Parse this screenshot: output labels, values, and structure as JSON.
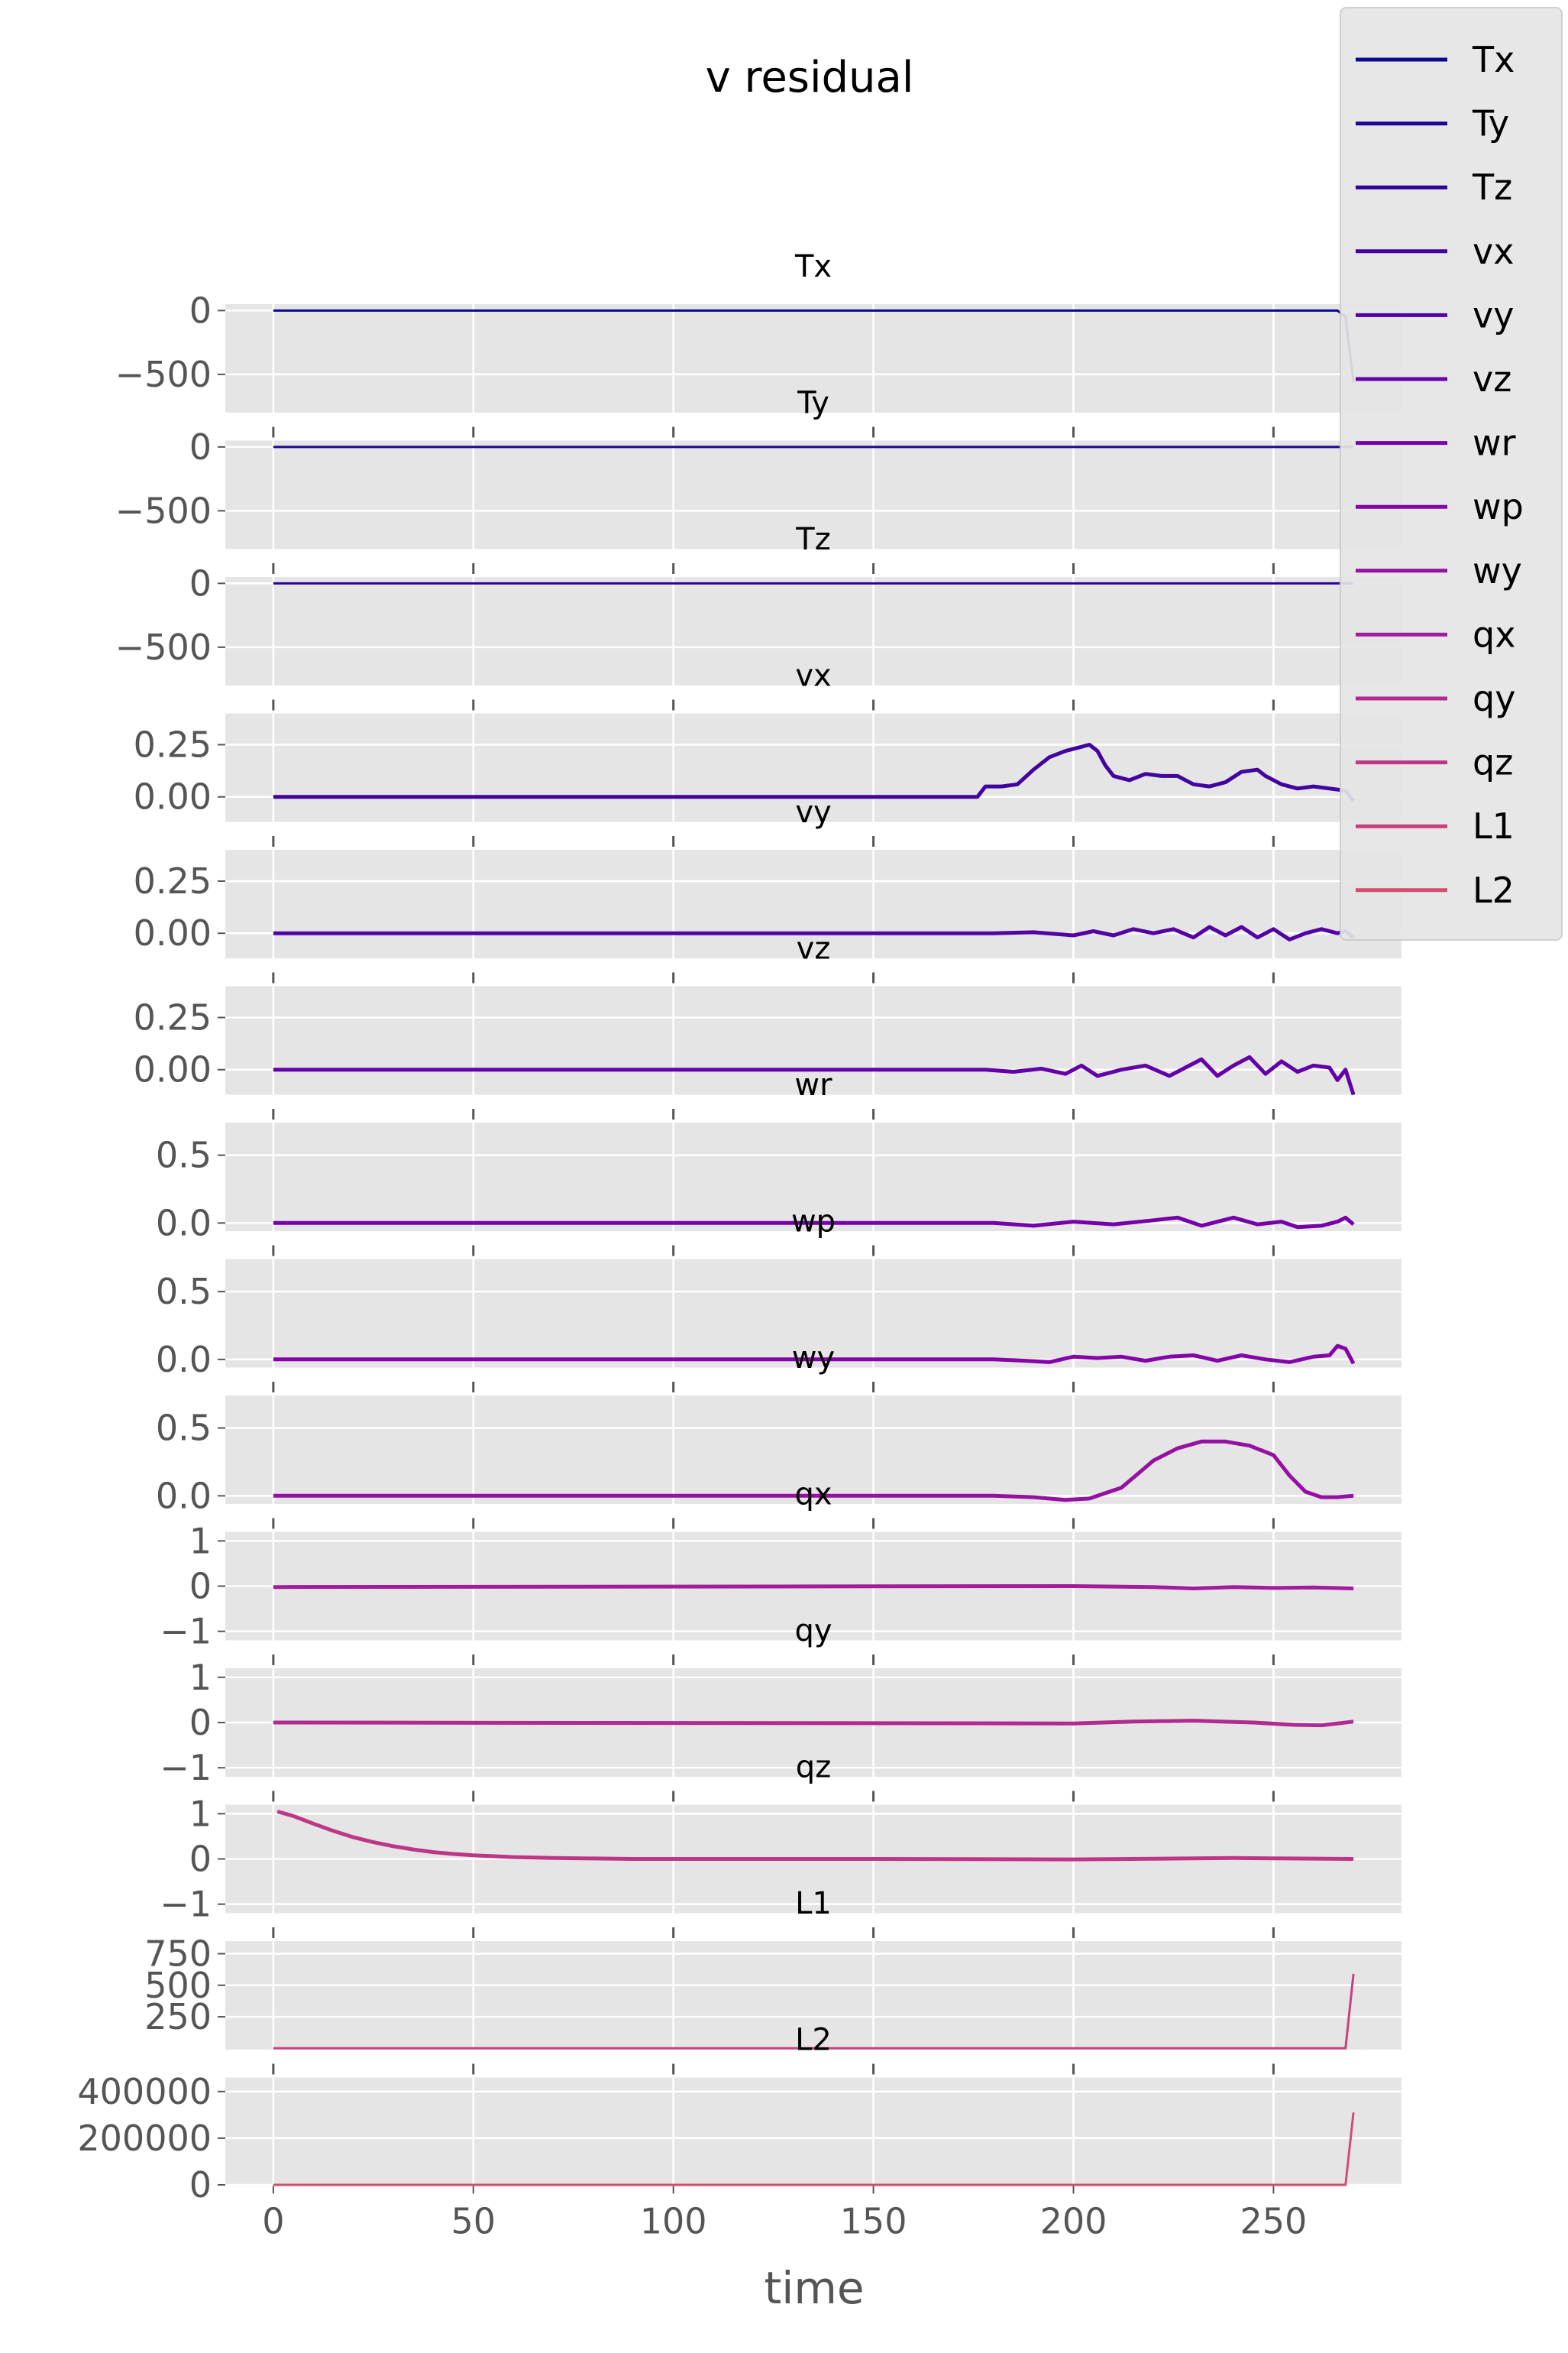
{
  "chart_data": {
    "type": "line",
    "title": "v residual",
    "xlabel": "time",
    "xlim": [
      -12,
      282
    ],
    "xticks": [
      0,
      50,
      100,
      150,
      200,
      250
    ],
    "x_range": [
      0,
      270
    ],
    "legend_position": "upper-right",
    "grid": true,
    "panels": [
      {
        "name": "Tx",
        "color": "#0d0887",
        "ylim": [
          -800,
          50
        ],
        "yticks": [
          0,
          -500
        ],
        "ytick_labels": [
          "0",
          "−500"
        ],
        "points": [
          [
            0,
            0
          ],
          [
            266,
            0
          ],
          [
            268,
            -50
          ],
          [
            270,
            -560
          ]
        ]
      },
      {
        "name": "Ty",
        "color": "#1b068d",
        "ylim": [
          -800,
          50
        ],
        "yticks": [
          0,
          -500
        ],
        "ytick_labels": [
          "0",
          "−500"
        ],
        "points": [
          [
            0,
            0
          ],
          [
            270,
            0
          ]
        ]
      },
      {
        "name": "Tz",
        "color": "#2a0593",
        "ylim": [
          -800,
          50
        ],
        "yticks": [
          0,
          -500
        ],
        "ytick_labels": [
          "0",
          "−500"
        ],
        "points": [
          [
            0,
            0
          ],
          [
            270,
            0
          ]
        ]
      },
      {
        "name": "vx",
        "color": "#41049d",
        "ylim": [
          -0.12,
          0.4
        ],
        "yticks": [
          0.25,
          0.0
        ],
        "ytick_labels": [
          "0.25",
          "0.00"
        ],
        "points": [
          [
            0,
            0
          ],
          [
            176,
            0
          ],
          [
            178,
            0.05
          ],
          [
            182,
            0.05
          ],
          [
            186,
            0.06
          ],
          [
            190,
            0.13
          ],
          [
            194,
            0.19
          ],
          [
            198,
            0.22
          ],
          [
            202,
            0.24
          ],
          [
            204,
            0.25
          ],
          [
            206,
            0.22
          ],
          [
            208,
            0.15
          ],
          [
            210,
            0.1
          ],
          [
            214,
            0.08
          ],
          [
            218,
            0.11
          ],
          [
            222,
            0.1
          ],
          [
            226,
            0.1
          ],
          [
            230,
            0.06
          ],
          [
            234,
            0.05
          ],
          [
            238,
            0.07
          ],
          [
            242,
            0.12
          ],
          [
            246,
            0.13
          ],
          [
            248,
            0.1
          ],
          [
            252,
            0.06
          ],
          [
            256,
            0.04
          ],
          [
            260,
            0.05
          ],
          [
            264,
            0.04
          ],
          [
            268,
            0.03
          ],
          [
            270,
            -0.02
          ]
        ]
      },
      {
        "name": "vy",
        "color": "#5302a3",
        "ylim": [
          -0.12,
          0.4
        ],
        "yticks": [
          0.25,
          0.0
        ],
        "ytick_labels": [
          "0.25",
          "0.00"
        ],
        "points": [
          [
            0,
            0
          ],
          [
            180,
            0
          ],
          [
            190,
            0.005
          ],
          [
            200,
            -0.01
          ],
          [
            205,
            0.01
          ],
          [
            210,
            -0.01
          ],
          [
            215,
            0.02
          ],
          [
            220,
            0.0
          ],
          [
            225,
            0.02
          ],
          [
            230,
            -0.02
          ],
          [
            234,
            0.03
          ],
          [
            238,
            -0.01
          ],
          [
            242,
            0.03
          ],
          [
            246,
            -0.02
          ],
          [
            250,
            0.02
          ],
          [
            254,
            -0.03
          ],
          [
            258,
            0.0
          ],
          [
            262,
            0.02
          ],
          [
            266,
            0.0
          ],
          [
            268,
            0.01
          ],
          [
            270,
            -0.02
          ]
        ]
      },
      {
        "name": "vz",
        "color": "#6300a7",
        "ylim": [
          -0.12,
          0.4
        ],
        "yticks": [
          0.25,
          0.0
        ],
        "ytick_labels": [
          "0.25",
          "0.00"
        ],
        "points": [
          [
            0,
            0
          ],
          [
            178,
            0
          ],
          [
            185,
            -0.01
          ],
          [
            192,
            0.005
          ],
          [
            198,
            -0.02
          ],
          [
            202,
            0.02
          ],
          [
            206,
            -0.03
          ],
          [
            212,
            0.0
          ],
          [
            218,
            0.02
          ],
          [
            224,
            -0.03
          ],
          [
            228,
            0.01
          ],
          [
            232,
            0.05
          ],
          [
            236,
            -0.03
          ],
          [
            240,
            0.02
          ],
          [
            244,
            0.06
          ],
          [
            248,
            -0.02
          ],
          [
            252,
            0.04
          ],
          [
            256,
            -0.01
          ],
          [
            260,
            0.02
          ],
          [
            264,
            0.01
          ],
          [
            266,
            -0.05
          ],
          [
            268,
            0.0
          ],
          [
            270,
            -0.12
          ]
        ]
      },
      {
        "name": "wr",
        "color": "#7501a8",
        "ylim": [
          -0.06,
          0.74
        ],
        "yticks": [
          0.5,
          0.0
        ],
        "ytick_labels": [
          "0.5",
          "0.0"
        ],
        "points": [
          [
            0,
            0
          ],
          [
            180,
            0
          ],
          [
            190,
            -0.02
          ],
          [
            200,
            0.01
          ],
          [
            210,
            -0.01
          ],
          [
            220,
            0.02
          ],
          [
            226,
            0.04
          ],
          [
            232,
            -0.02
          ],
          [
            240,
            0.04
          ],
          [
            246,
            -0.01
          ],
          [
            252,
            0.01
          ],
          [
            256,
            -0.03
          ],
          [
            262,
            -0.02
          ],
          [
            266,
            0.01
          ],
          [
            268,
            0.04
          ],
          [
            270,
            -0.01
          ]
        ]
      },
      {
        "name": "wp",
        "color": "#8405a7",
        "ylim": [
          -0.06,
          0.74
        ],
        "yticks": [
          0.5,
          0.0
        ],
        "ytick_labels": [
          "0.5",
          "0.0"
        ],
        "points": [
          [
            0,
            0
          ],
          [
            180,
            0
          ],
          [
            188,
            -0.01
          ],
          [
            194,
            -0.02
          ],
          [
            200,
            0.02
          ],
          [
            206,
            0.01
          ],
          [
            212,
            0.02
          ],
          [
            218,
            -0.01
          ],
          [
            224,
            0.02
          ],
          [
            230,
            0.03
          ],
          [
            236,
            -0.01
          ],
          [
            242,
            0.03
          ],
          [
            248,
            0.0
          ],
          [
            254,
            -0.02
          ],
          [
            260,
            0.02
          ],
          [
            264,
            0.03
          ],
          [
            266,
            0.1
          ],
          [
            268,
            0.08
          ],
          [
            270,
            -0.03
          ]
        ]
      },
      {
        "name": "wy",
        "color": "#9511a1",
        "ylim": [
          -0.06,
          0.74
        ],
        "yticks": [
          0.5,
          0.0
        ],
        "ytick_labels": [
          "0.5",
          "0.0"
        ],
        "points": [
          [
            0,
            0
          ],
          [
            180,
            0
          ],
          [
            190,
            -0.01
          ],
          [
            198,
            -0.03
          ],
          [
            204,
            -0.02
          ],
          [
            208,
            0.02
          ],
          [
            212,
            0.06
          ],
          [
            216,
            0.16
          ],
          [
            220,
            0.26
          ],
          [
            226,
            0.35
          ],
          [
            232,
            0.4
          ],
          [
            238,
            0.4
          ],
          [
            244,
            0.37
          ],
          [
            250,
            0.3
          ],
          [
            254,
            0.15
          ],
          [
            258,
            0.03
          ],
          [
            262,
            -0.01
          ],
          [
            266,
            -0.01
          ],
          [
            270,
            0.0
          ]
        ]
      },
      {
        "name": "qx",
        "color": "#a21d9a",
        "ylim": [
          -1.2,
          1.2
        ],
        "yticks": [
          1,
          0,
          -1
        ],
        "ytick_labels": [
          "1",
          "0",
          "−1"
        ],
        "points": [
          [
            0,
            -0.02
          ],
          [
            200,
            0.0
          ],
          [
            210,
            -0.01
          ],
          [
            220,
            -0.02
          ],
          [
            230,
            -0.05
          ],
          [
            240,
            -0.02
          ],
          [
            250,
            -0.04
          ],
          [
            260,
            -0.03
          ],
          [
            270,
            -0.05
          ]
        ]
      },
      {
        "name": "qy",
        "color": "#b02a8f",
        "ylim": [
          -1.2,
          1.2
        ],
        "yticks": [
          1,
          0,
          -1
        ],
        "ytick_labels": [
          "1",
          "0",
          "−1"
        ],
        "points": [
          [
            0,
            0.0
          ],
          [
            200,
            -0.02
          ],
          [
            215,
            0.02
          ],
          [
            230,
            0.04
          ],
          [
            245,
            0.0
          ],
          [
            255,
            -0.05
          ],
          [
            262,
            -0.06
          ],
          [
            270,
            0.02
          ]
        ]
      },
      {
        "name": "qz",
        "color": "#bd3786",
        "ylim": [
          -1.2,
          1.2
        ],
        "yticks": [
          1,
          0,
          -1
        ],
        "ytick_labels": [
          "1",
          "0",
          "−1"
        ],
        "points": [
          [
            1,
            1.05
          ],
          [
            5,
            0.95
          ],
          [
            10,
            0.78
          ],
          [
            15,
            0.62
          ],
          [
            20,
            0.48
          ],
          [
            25,
            0.37
          ],
          [
            30,
            0.28
          ],
          [
            35,
            0.21
          ],
          [
            40,
            0.15
          ],
          [
            45,
            0.11
          ],
          [
            50,
            0.08
          ],
          [
            55,
            0.06
          ],
          [
            60,
            0.04
          ],
          [
            70,
            0.02
          ],
          [
            80,
            0.01
          ],
          [
            90,
            0.0
          ],
          [
            150,
            0.0
          ],
          [
            200,
            -0.01
          ],
          [
            240,
            0.02
          ],
          [
            270,
            0.0
          ]
        ]
      },
      {
        "name": "L1",
        "color": "#c7427c",
        "ylim": [
          -10,
          850
        ],
        "yticks": [
          750,
          500,
          250
        ],
        "ytick_labels": [
          "750",
          "500",
          "250"
        ],
        "points": [
          [
            0,
            0
          ],
          [
            268,
            0
          ],
          [
            270,
            590
          ]
        ]
      },
      {
        "name": "L2",
        "color": "#d14e72",
        "ylim": [
          -5000,
          460000
        ],
        "yticks": [
          400000,
          200000,
          0
        ],
        "ytick_labels": [
          "400000",
          "200000",
          "0"
        ],
        "points": [
          [
            0,
            0
          ],
          [
            268,
            0
          ],
          [
            270,
            310000
          ]
        ]
      }
    ]
  }
}
